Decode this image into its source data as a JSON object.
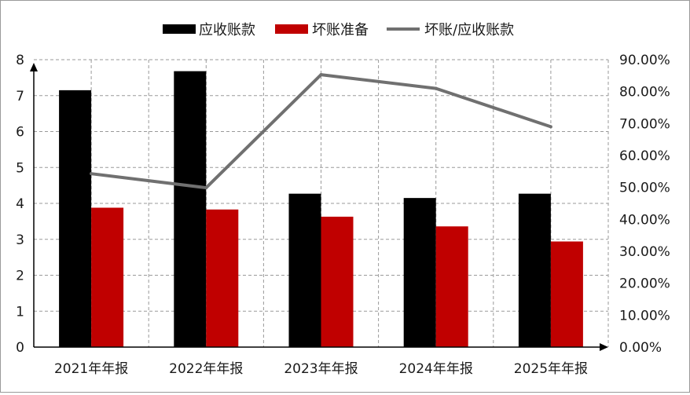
{
  "chart_data": {
    "type": "bar",
    "categories": [
      "2021年年报",
      "2022年年报",
      "2023年年报",
      "2024年年报",
      "2025年年报"
    ],
    "series": [
      {
        "name": "应收账款",
        "type": "bar",
        "axis": "left",
        "color": "#000000",
        "values": [
          7.15,
          7.68,
          4.27,
          4.15,
          4.27
        ]
      },
      {
        "name": "坏账准备",
        "type": "bar",
        "axis": "left",
        "color": "#c00000",
        "values": [
          3.88,
          3.83,
          3.63,
          3.36,
          2.94
        ]
      },
      {
        "name": "坏账/应收账款",
        "type": "line",
        "axis": "right",
        "color": "#707070",
        "values": [
          0.543,
          0.499,
          0.853,
          0.81,
          0.69
        ]
      }
    ],
    "y_left": {
      "min": 0,
      "max": 8,
      "ticks": [
        "0",
        "1",
        "2",
        "3",
        "4",
        "5",
        "6",
        "7",
        "8"
      ]
    },
    "y_right": {
      "min": 0,
      "max": 0.9,
      "ticks": [
        "0.00%",
        "10.00%",
        "20.00%",
        "30.00%",
        "40.00%",
        "50.00%",
        "60.00%",
        "70.00%",
        "80.00%",
        "90.00%"
      ]
    },
    "grid": true,
    "legend_position": "top"
  }
}
